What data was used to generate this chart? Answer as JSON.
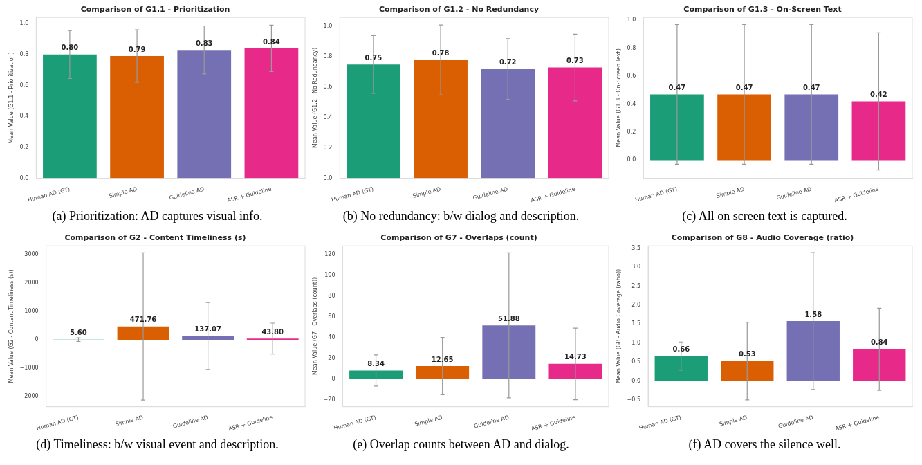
{
  "chart_data": [
    {
      "type": "bar",
      "title": "Comparison of G1.1 - Prioritization",
      "ylabel": "Mean Value (G1.1 - Prioritization)",
      "categories": [
        "Human AD (GT)",
        "Simple AD",
        "Guideline AD",
        "ASR + Guideline"
      ],
      "values": [
        0.8,
        0.79,
        0.83,
        0.84
      ],
      "colors": [
        "#1b9e77",
        "#d95f02",
        "#7570b3",
        "#e7298a"
      ],
      "errors": [
        0.155,
        0.17,
        0.155,
        0.15
      ],
      "value_labels": [
        "0.80",
        "0.79",
        "0.83",
        "0.84"
      ],
      "ylim": [
        0,
        1.04
      ],
      "yticks": [
        {
          "value": 0,
          "label": "0.0"
        },
        0.2,
        0.4,
        0.6,
        0.8,
        {
          "value": 1,
          "label": "1.0"
        }
      ],
      "annotations": [
        "(a) Prioritization: AD captures visual info."
      ]
    },
    {
      "type": "bar",
      "title": "Comparison of G1.2 - No Redundancy",
      "ylabel": "Mean Value (G1.2 - No Redundancy)",
      "categories": [
        "Human AD (GT)",
        "Simple AD",
        "Guideline AD",
        "ASR + Guideline"
      ],
      "values": [
        0.75,
        0.78,
        0.72,
        0.73
      ],
      "colors": [
        "#1b9e77",
        "#d95f02",
        "#7570b3",
        "#e7298a"
      ],
      "errors": [
        0.19,
        0.23,
        0.2,
        0.22
      ],
      "value_labels": [
        "0.75",
        "0.78",
        "0.72",
        "0.73"
      ],
      "ylim": [
        0,
        1.06
      ],
      "yticks": [
        {
          "value": 0,
          "label": "0.0"
        },
        0.2,
        0.4,
        0.6,
        0.8,
        {
          "value": 1,
          "label": "1.0"
        }
      ],
      "annotations": [
        "(b) No redundancy: b/w dialog and description."
      ]
    },
    {
      "type": "bar",
      "title": "Comparison of G1.3 - On-Screen Text",
      "ylabel": "Mean Value (G1.3 - On-Screen Text)",
      "categories": [
        "Human AD (GT)",
        "Simple AD",
        "Guideline AD",
        "ASR + Guideline"
      ],
      "values": [
        0.47,
        0.47,
        0.47,
        0.42
      ],
      "colors": [
        "#1b9e77",
        "#d95f02",
        "#7570b3",
        "#e7298a"
      ],
      "errors": [
        0.5,
        0.5,
        0.5,
        0.49
      ],
      "value_labels": [
        "0.47",
        "0.47",
        "0.47",
        "0.42"
      ],
      "ylim": [
        -0.13,
        1.02
      ],
      "yticks": [
        {
          "value": 0,
          "label": "0.0"
        },
        0.2,
        0.4,
        0.6,
        0.8,
        {
          "value": 1,
          "label": "1.0"
        }
      ],
      "annotations": [
        "(c) All on screen text is captured."
      ]
    },
    {
      "type": "bar",
      "title": "Comparison of G2 - Content Timeliness (s)",
      "ylabel": "Mean Value (G2 - Content Timeliness (s))",
      "categories": [
        "Human AD (GT)",
        "Simple AD",
        "Guideline AD",
        "ASR + Guideline"
      ],
      "values": [
        5.6,
        471.76,
        137.07,
        43.8
      ],
      "colors": [
        "#1b9e77",
        "#d95f02",
        "#7570b3",
        "#e7298a"
      ],
      "errors": [
        65,
        2600,
        1180,
        545
      ],
      "value_labels": [
        "5.60",
        "471.76",
        "137.07",
        "43.80"
      ],
      "ylim": [
        -2360,
        3320
      ],
      "yticks": [
        {
          "value": -2000,
          "label": "−2000"
        },
        {
          "value": -1000,
          "label": "−1000"
        },
        0,
        1000,
        2000,
        3000
      ],
      "annotations": [
        "(d) Timeliness: b/w visual event and description."
      ]
    },
    {
      "type": "bar",
      "title": "Comparison of G7 - Overlaps (count)",
      "ylabel": "Mean Value (G7 - Overlaps (count))",
      "categories": [
        "Human AD (GT)",
        "Simple AD",
        "Guideline AD",
        "ASR + Guideline"
      ],
      "values": [
        8.34,
        12.65,
        51.88,
        14.73
      ],
      "colors": [
        "#1b9e77",
        "#d95f02",
        "#7570b3",
        "#e7298a"
      ],
      "errors": [
        15,
        27.6,
        69.8,
        34.5
      ],
      "value_labels": [
        "8.34",
        "12.65",
        "51.88",
        "14.73"
      ],
      "ylim": [
        -26.5,
        128.5
      ],
      "yticks": [
        {
          "value": -20,
          "label": "−20"
        },
        0,
        20,
        40,
        60,
        80,
        100,
        120
      ],
      "annotations": [
        "(e) Overlap counts between AD and dialog."
      ]
    },
    {
      "type": "bar",
      "title": "Comparison of G8 - Audio Coverage (ratio)",
      "ylabel": "Mean Value (G8 - Audio Coverage (ratio))",
      "categories": [
        "Human AD (GT)",
        "Simple AD",
        "Guideline AD",
        "ASR + Guideline"
      ],
      "values": [
        0.66,
        0.53,
        1.58,
        0.84
      ],
      "colors": [
        "#1b9e77",
        "#d95f02",
        "#7570b3",
        "#e7298a"
      ],
      "errors": [
        0.37,
        1.02,
        1.8,
        1.08
      ],
      "value_labels": [
        "0.66",
        "0.53",
        "1.58",
        "0.84"
      ],
      "ylim": [
        -0.67,
        3.56
      ],
      "yticks": [
        {
          "value": -0.5,
          "label": "−0.5"
        },
        {
          "value": 0,
          "label": "0.0"
        },
        0.5,
        {
          "value": 1,
          "label": "1.0"
        },
        1.5,
        {
          "value": 2,
          "label": "2.0"
        },
        2.5,
        {
          "value": 3,
          "label": "3.0"
        },
        3.5
      ],
      "annotations": [
        "(f) AD covers the silence well."
      ]
    }
  ]
}
